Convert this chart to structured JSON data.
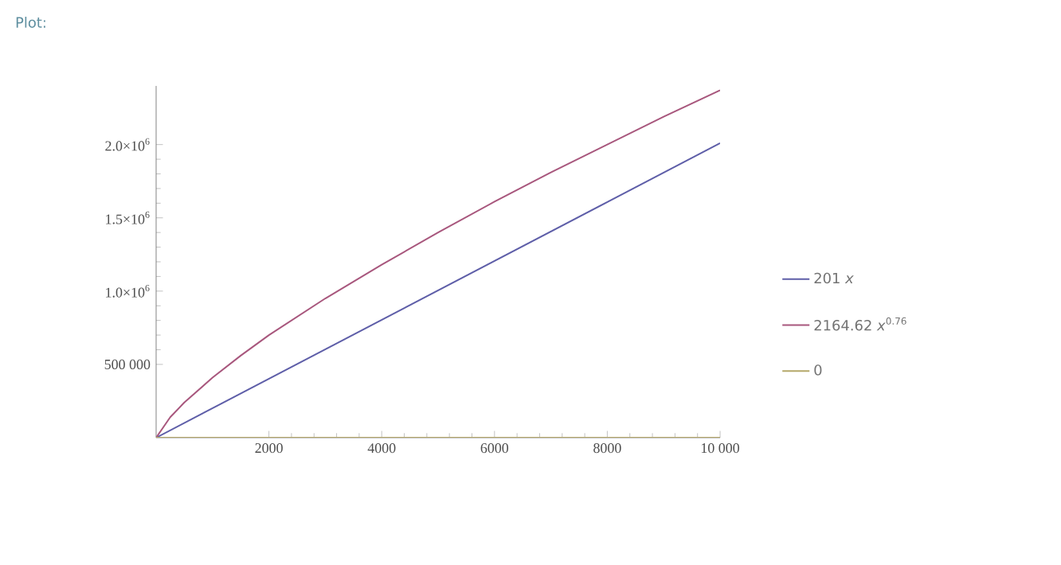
{
  "chart_data": {
    "type": "line",
    "title": "Plot:",
    "xlim": [
      0,
      10000
    ],
    "ylim": [
      0,
      2400000
    ],
    "xticks": [
      2000,
      4000,
      6000,
      8000,
      {
        "value": 10000,
        "label": "10 000"
      }
    ],
    "yticks": [
      {
        "value": 500000,
        "label": "500 000"
      },
      {
        "value": 1000000,
        "label": "1.0×10$^{6}$"
      },
      {
        "value": 1500000,
        "label": "1.5×10$^{6}$"
      },
      {
        "value": 2000000,
        "label": "2.0×10$^{6}$"
      }
    ],
    "legend": "right",
    "grid": false,
    "marker": "none",
    "line_style": "solid",
    "series": [
      {
        "name": "201 *x*",
        "color": "#5e5ea8",
        "x": [
          0,
          10000
        ],
        "values": [
          0,
          2010000
        ]
      },
      {
        "name": "2164.62 *x*$^{0.76}$",
        "color": "#a8577d",
        "x": [
          0,
          250,
          500,
          1000,
          1500,
          2000,
          3000,
          4000,
          5000,
          6000,
          7000,
          8000,
          9000,
          10000
        ],
        "values": [
          0,
          140000,
          240000,
          410000,
          560000,
          700000,
          950000,
          1180000,
          1400000,
          1610000,
          1810000,
          2000000,
          2190000,
          2370000
        ]
      },
      {
        "name": "0",
        "color": "#b5a86a",
        "x": [
          0,
          10000
        ],
        "values": [
          0,
          0
        ]
      }
    ]
  }
}
